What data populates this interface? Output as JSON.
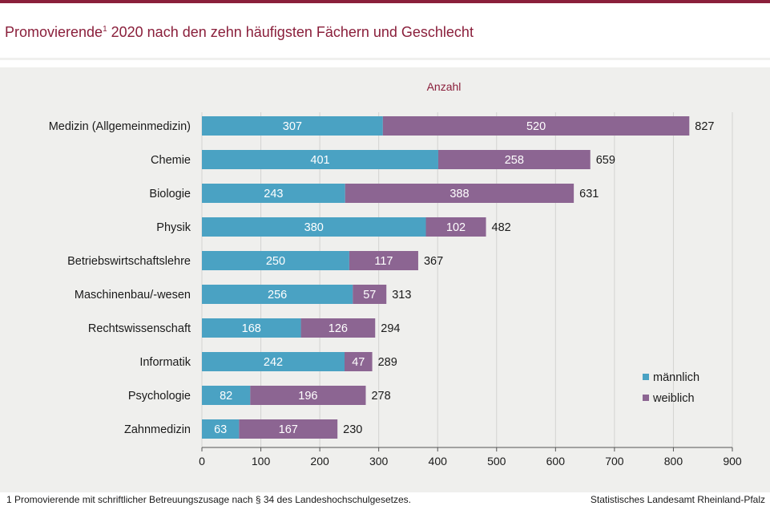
{
  "header": {
    "title_main": "Promovierende",
    "title_sup": "1",
    "title_rest": " 2020 nach den zehn häufigsten Fächern und Geschlecht"
  },
  "footer": {
    "footnote": "1 Promovierende  mit schriftlicher Betreuungszusage  nach § 34 des Landeshochschulgesetzes.",
    "source": "Statistisches Landesamt Rheinland-Pfalz"
  },
  "colors": {
    "brand": "#8a1f3b",
    "maennlich": "#4aa2c3",
    "weiblich": "#8c6592",
    "panel": "#efefed"
  },
  "chart_data": {
    "type": "bar",
    "orientation": "horizontal",
    "stacked": true,
    "xlabel": "Anzahl",
    "xlim": [
      0,
      900
    ],
    "xticks": [
      0,
      100,
      200,
      300,
      400,
      500,
      600,
      700,
      800,
      900
    ],
    "grid": true,
    "legend_position": "bottom-right",
    "categories": [
      "Medizin (Allgemeinmedizin)",
      "Chemie",
      "Biologie",
      "Physik",
      "Betriebswirtschaftslehre",
      "Maschinenbau/-wesen",
      "Rechtswissenschaft",
      "Informatik",
      "Psychologie",
      "Zahnmedizin"
    ],
    "series": [
      {
        "name": "männlich",
        "color": "#4aa2c3",
        "values": [
          307,
          401,
          243,
          380,
          250,
          256,
          168,
          242,
          82,
          63
        ]
      },
      {
        "name": "weiblich",
        "color": "#8c6592",
        "values": [
          520,
          258,
          388,
          102,
          117,
          57,
          126,
          47,
          196,
          167
        ]
      }
    ],
    "totals": [
      827,
      659,
      631,
      482,
      367,
      313,
      294,
      289,
      278,
      230
    ]
  }
}
